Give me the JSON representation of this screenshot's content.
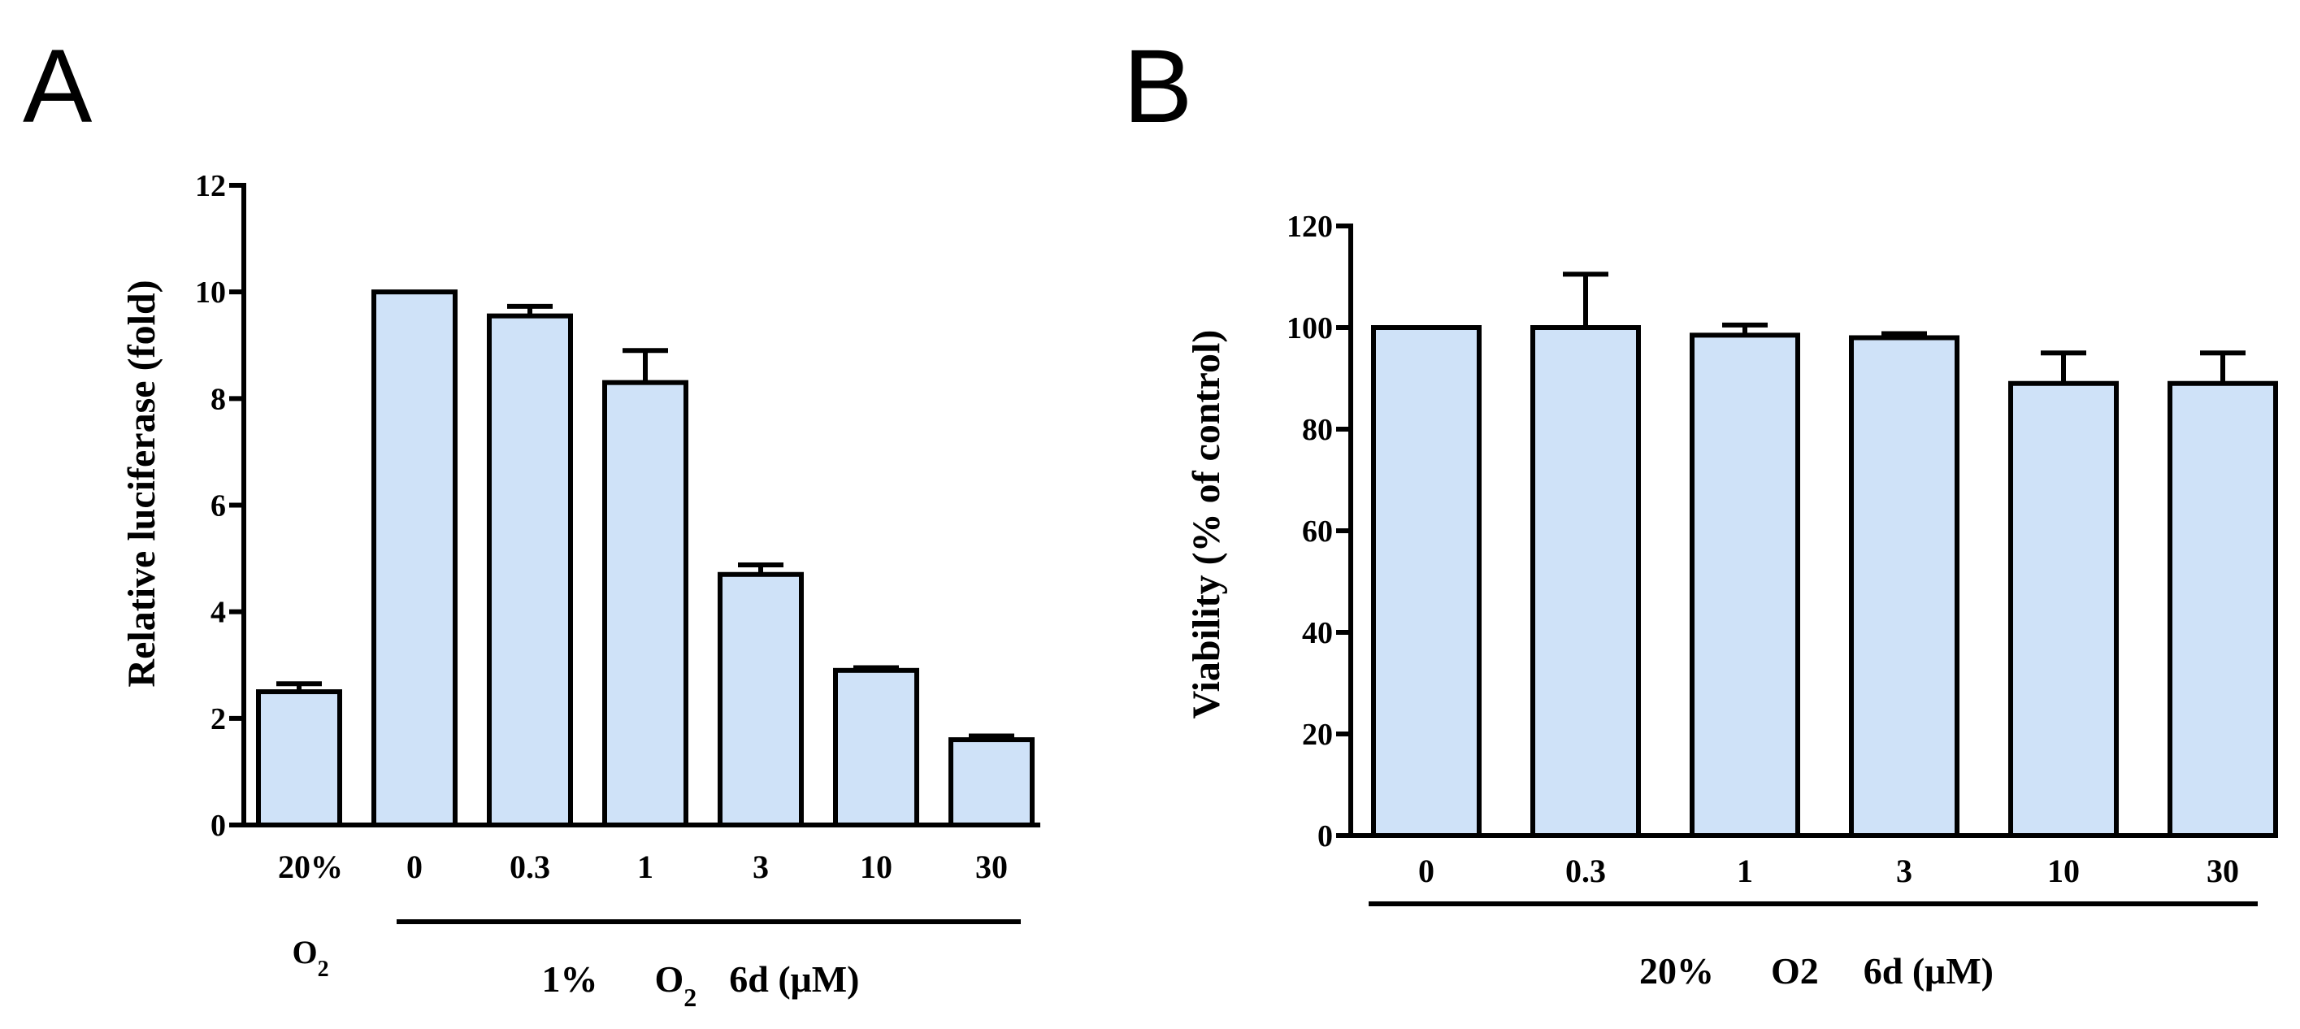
{
  "chart_data": [
    {
      "panel": "A",
      "type": "bar",
      "ylabel": "Relative luciferase (fold)",
      "ylim": [
        0,
        12
      ],
      "yticks": [
        0,
        2,
        4,
        6,
        8,
        10,
        12
      ],
      "categories": [
        "20%",
        "0",
        "0.3",
        "1",
        "3",
        "10",
        "30"
      ],
      "first_category_sub": "O",
      "first_category_sub_index": "2",
      "values": [
        2.5,
        10.0,
        9.55,
        8.3,
        4.7,
        2.9,
        1.6
      ],
      "errors": [
        0.15,
        0.0,
        0.18,
        0.6,
        0.18,
        0.05,
        0.07
      ],
      "group_label": {
        "conc": "1%",
        "gas": "O",
        "gas_sub": "2",
        "compound": "6d (μM)"
      }
    },
    {
      "panel": "B",
      "type": "bar",
      "ylabel": "Viability (% of control)",
      "ylim": [
        0,
        120
      ],
      "yticks": [
        0,
        20,
        40,
        60,
        80,
        100,
        120
      ],
      "categories": [
        "0",
        "0.3",
        "1",
        "3",
        "10",
        "30"
      ],
      "values": [
        100,
        100,
        98.5,
        98,
        89,
        89
      ],
      "errors": [
        0,
        10.5,
        2.0,
        0.8,
        6.0,
        6.0
      ],
      "group_label": {
        "conc": "20%",
        "gas": "O2",
        "compound": "6d (μM)"
      }
    }
  ]
}
